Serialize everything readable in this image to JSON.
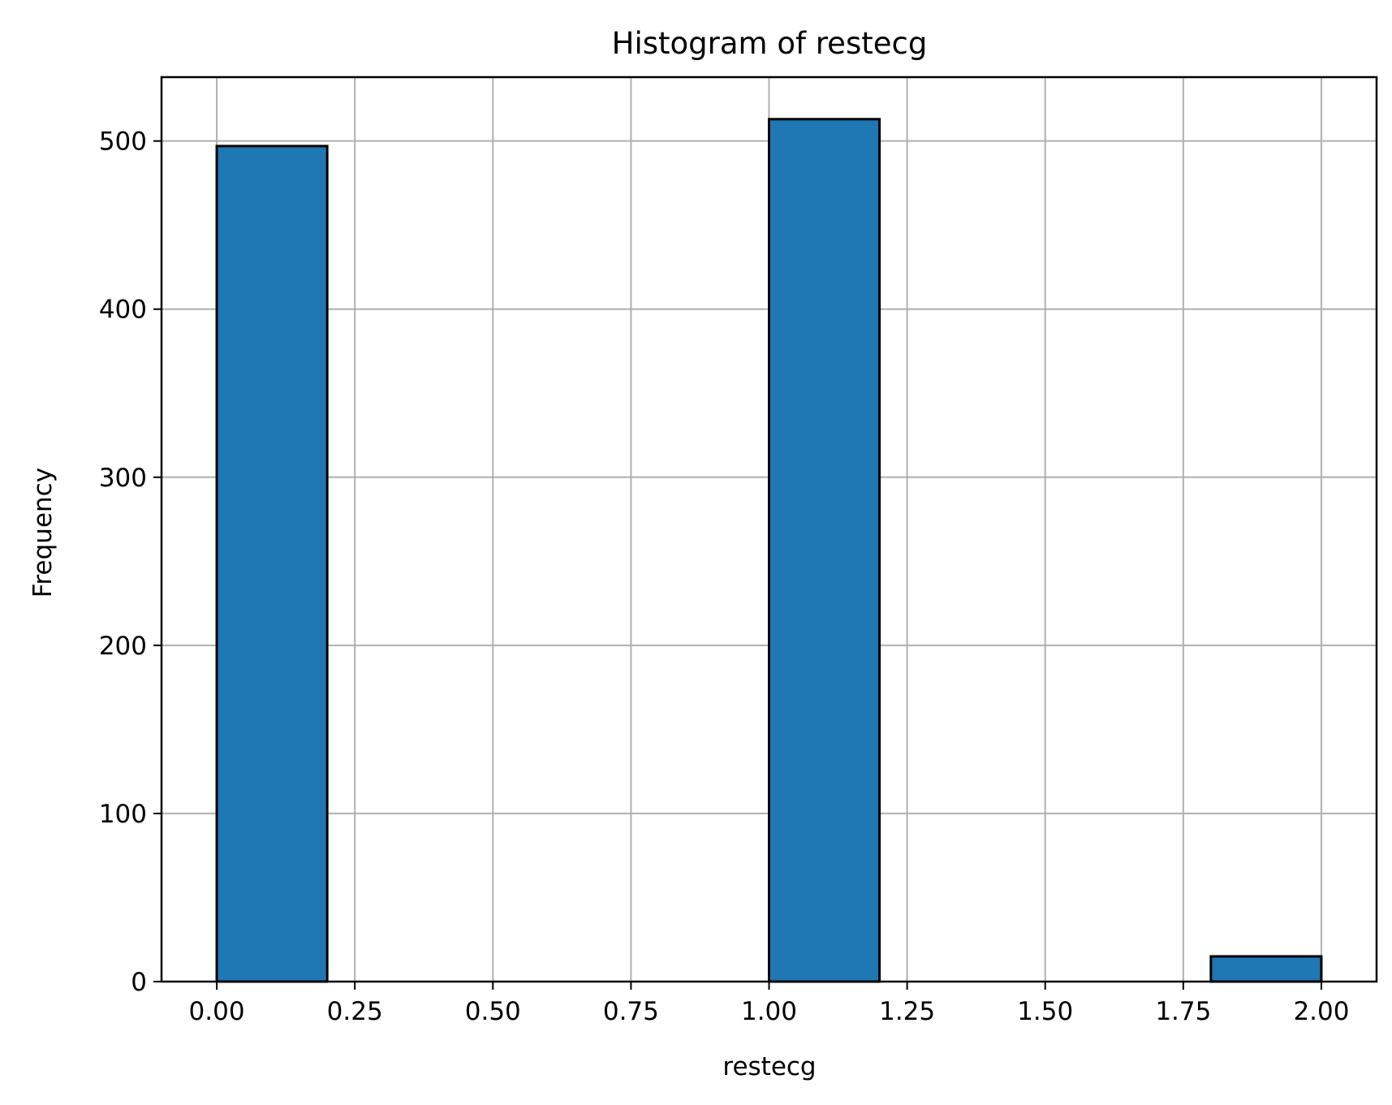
{
  "chart_data": {
    "type": "bar",
    "title": "Histogram of restecg",
    "xlabel": "restecg",
    "ylabel": "Frequency",
    "bins": [
      {
        "x0": 0.0,
        "x1": 0.2,
        "value": 497
      },
      {
        "x0": 0.2,
        "x1": 0.4,
        "value": 0
      },
      {
        "x0": 0.4,
        "x1": 0.6,
        "value": 0
      },
      {
        "x0": 0.6,
        "x1": 0.8,
        "value": 0
      },
      {
        "x0": 0.8,
        "x1": 1.0,
        "value": 0
      },
      {
        "x0": 1.0,
        "x1": 1.2,
        "value": 513
      },
      {
        "x0": 1.2,
        "x1": 1.4,
        "value": 0
      },
      {
        "x0": 1.4,
        "x1": 1.6,
        "value": 0
      },
      {
        "x0": 1.6,
        "x1": 1.8,
        "value": 0
      },
      {
        "x0": 1.8,
        "x1": 2.0,
        "value": 15
      }
    ],
    "xlim": [
      -0.1,
      2.1
    ],
    "ylim": [
      0,
      538
    ],
    "x_ticks": [
      0.0,
      0.25,
      0.5,
      0.75,
      1.0,
      1.25,
      1.5,
      1.75,
      2.0
    ],
    "x_tick_labels": [
      "0.00",
      "0.25",
      "0.50",
      "0.75",
      "1.00",
      "1.25",
      "1.50",
      "1.75",
      "2.00"
    ],
    "y_ticks": [
      0,
      100,
      200,
      300,
      400,
      500
    ],
    "y_tick_labels": [
      "0",
      "100",
      "200",
      "300",
      "400",
      "500"
    ],
    "grid": true,
    "colors": {
      "bar_fill": "#1f77b4",
      "bar_edge": "#000000",
      "grid": "#b0b0b0",
      "axes": "#000000"
    }
  }
}
